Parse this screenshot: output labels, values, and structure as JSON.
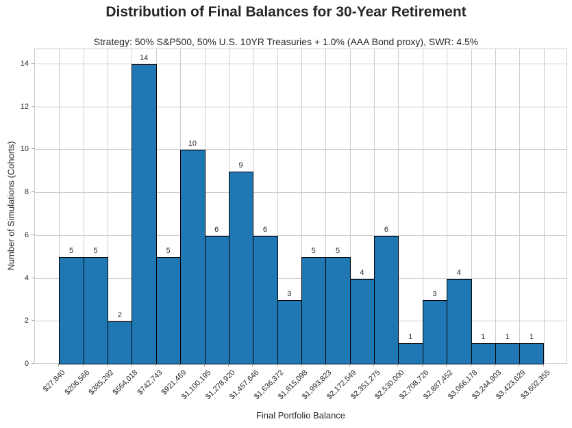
{
  "title": "Distribution of Final Balances for 30-Year Retirement",
  "subtitle": "Strategy: 50% S&P500, 50% U.S. 10YR Treasuries + 1.0% (AAA Bond proxy), SWR: 4.5%",
  "chart_data": {
    "type": "bar",
    "subtype": "histogram",
    "title": "Distribution of Final Balances for 30-Year Retirement",
    "subtitle": "Strategy: 50% S&P500, 50% U.S. 10YR Treasuries + 1.0% (AAA Bond proxy), SWR: 4.5%",
    "xlabel": "Final Portfolio Balance",
    "ylabel": "Number of Simulations (Cohorts)",
    "bin_edge_labels": [
      "$27,840",
      "$206,566",
      "$385,292",
      "$564,018",
      "$742,743",
      "$921,469",
      "$1,100,195",
      "$1,278,920",
      "$1,457,646",
      "$1,636,372",
      "$1,815,098",
      "$1,993,823",
      "$2,172,549",
      "$2,351,275",
      "$2,530,000",
      "$2,708,726",
      "$2,887,452",
      "$3,066,178",
      "$3,244,903",
      "$3,423,629",
      "$3,602,355"
    ],
    "bin_edges": [
      27840,
      206566,
      385292,
      564018,
      742743,
      921469,
      1100195,
      1278920,
      1457646,
      1636372,
      1815098,
      1993823,
      2172549,
      2351275,
      2530000,
      2708726,
      2887452,
      3066178,
      3244903,
      3423629,
      3602355
    ],
    "values": [
      5,
      5,
      2,
      14,
      5,
      10,
      6,
      9,
      6,
      3,
      5,
      5,
      4,
      6,
      1,
      3,
      4,
      1,
      1,
      1
    ],
    "bar_value_labels": [
      "5",
      "5",
      "2",
      "14",
      "5",
      "10",
      "6",
      "9",
      "6",
      "3",
      "5",
      "5",
      "4",
      "6",
      "1",
      "3",
      "4",
      "1",
      "1",
      "1"
    ],
    "yticks": [
      0,
      2,
      4,
      6,
      8,
      10,
      12,
      14
    ],
    "ylim": [
      0,
      14.7
    ],
    "grid": true,
    "legend": null,
    "colors": {
      "bar_fill": "#1f77b4",
      "bar_edge": "#000000",
      "grid": "#cccccc",
      "spine": "#cccccc",
      "text": "#262626",
      "tick_mark": "#999999",
      "background": "#ffffff"
    }
  }
}
